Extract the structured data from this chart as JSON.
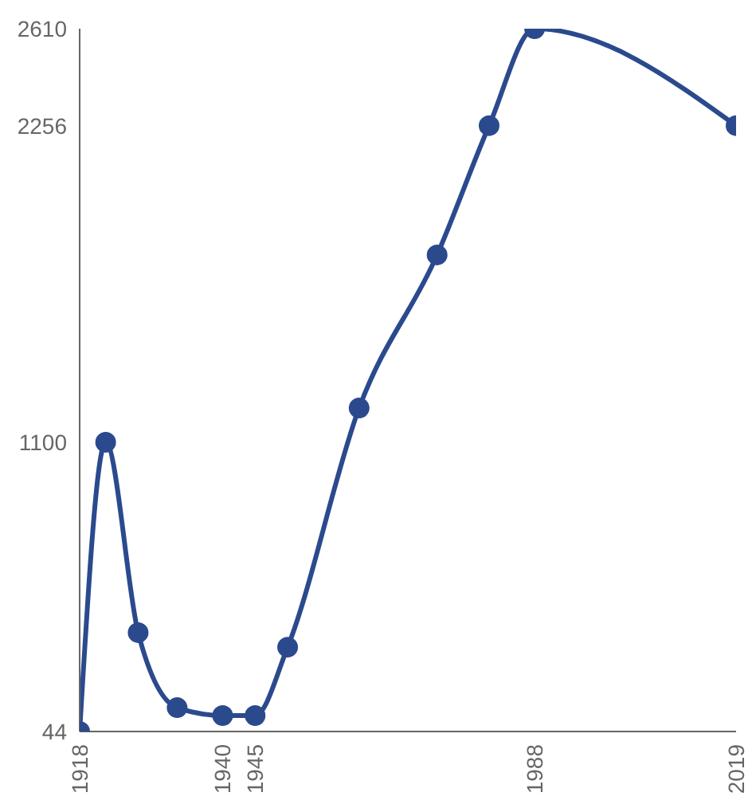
{
  "chart_data": {
    "type": "line",
    "x": [
      1918,
      1922,
      1927,
      1933,
      1940,
      1945,
      1950,
      1961,
      1973,
      1981,
      1988,
      2019
    ],
    "series": [
      {
        "color": "#2b4a8e",
        "values": [
          44,
          1100,
          405,
          131,
          102,
          102,
          352,
          1225,
          1784,
          2256,
          2610,
          2256
        ]
      }
    ],
    "xlim": [
      1918,
      2019
    ],
    "xticks": [
      1918,
      1940,
      1945,
      1988,
      2019
    ],
    "ylim": [
      44,
      2610
    ],
    "yticks": [
      44,
      1100,
      2256,
      2610
    ],
    "grid": false,
    "legend": false,
    "marker": "circle",
    "line_style": "solid"
  }
}
